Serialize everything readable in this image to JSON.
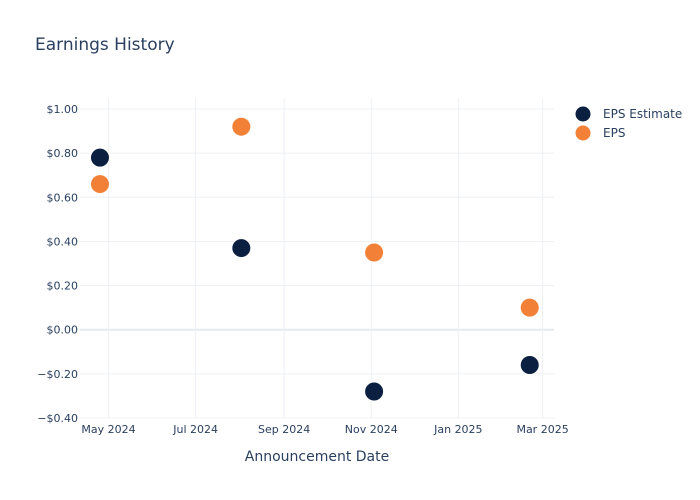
{
  "chart_data": {
    "type": "scatter",
    "title": "Earnings History",
    "xlabel": "Announcement Date",
    "ylabel": "",
    "x_ticks": [
      {
        "date": "2024-05-01",
        "label": "May 2024"
      },
      {
        "date": "2024-07-01",
        "label": "Jul 2024"
      },
      {
        "date": "2024-09-01",
        "label": "Sep 2024"
      },
      {
        "date": "2024-11-01",
        "label": "Nov 2024"
      },
      {
        "date": "2025-01-01",
        "label": "Jan 2025"
      },
      {
        "date": "2025-03-01",
        "label": "Mar 2025"
      }
    ],
    "y_ticks": [
      {
        "value": 1.0,
        "label": "$1.00"
      },
      {
        "value": 0.8,
        "label": "$0.80"
      },
      {
        "value": 0.6,
        "label": "$0.60"
      },
      {
        "value": 0.4,
        "label": "$0.40"
      },
      {
        "value": 0.2,
        "label": "$0.20"
      },
      {
        "value": 0.0,
        "label": "$0.00"
      },
      {
        "value": -0.2,
        "label": "−$0.20"
      },
      {
        "value": -0.4,
        "label": "−$0.40"
      }
    ],
    "xlim": [
      "2024-04-11",
      "2025-03-09"
    ],
    "ylim": [
      -0.4,
      1.05
    ],
    "grid": true,
    "legend_position": "top-right",
    "series": [
      {
        "name": "EPS Estimate",
        "color": "#0b1f40",
        "points": [
          {
            "x": "2024-04-25",
            "y": 0.78
          },
          {
            "x": "2024-08-02",
            "y": 0.37
          },
          {
            "x": "2024-11-03",
            "y": -0.28
          },
          {
            "x": "2025-02-20",
            "y": -0.16
          }
        ]
      },
      {
        "name": "EPS",
        "color": "#f28137",
        "points": [
          {
            "x": "2024-04-25",
            "y": 0.66
          },
          {
            "x": "2024-08-02",
            "y": 0.92
          },
          {
            "x": "2024-11-03",
            "y": 0.35
          },
          {
            "x": "2025-02-20",
            "y": 0.1
          }
        ]
      }
    ]
  }
}
